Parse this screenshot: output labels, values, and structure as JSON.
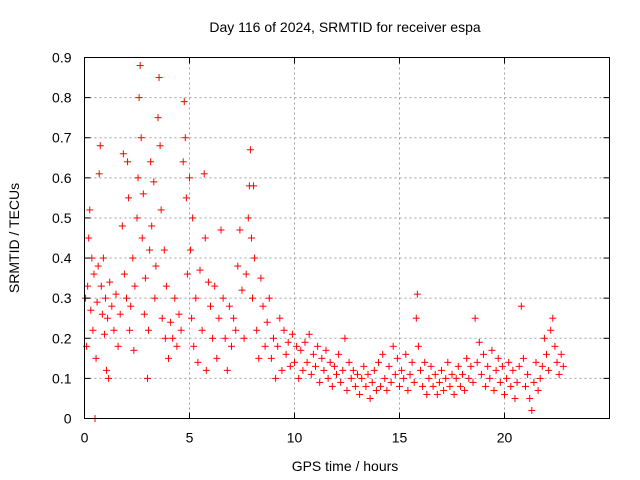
{
  "chart_data": {
    "type": "scatter",
    "title": "Day 116 of 2024, SRMTID for receiver espa",
    "xlabel": "GPS time / hours",
    "ylabel": "SRMTID / TECUs",
    "xlim": [
      0,
      25
    ],
    "ylim": [
      0,
      0.9
    ],
    "grid": true,
    "marker": "+",
    "color": "#ff0000",
    "xticks": [
      0,
      5,
      10,
      15,
      20
    ],
    "xtick_labels": [
      "0",
      "5",
      "10",
      "15",
      "20"
    ],
    "yticks": [
      0,
      0.1,
      0.2,
      0.3,
      0.4,
      0.5,
      0.6,
      0.7,
      0.8,
      0.9
    ],
    "ytick_labels": [
      "0",
      "0.1",
      "0.2",
      "0.3",
      "0.4",
      "0.5",
      "0.6",
      "0.7",
      "0.8",
      "0.9"
    ],
    "series": [
      {
        "name": "SRMTID",
        "points": [
          [
            0.05,
            0.3
          ],
          [
            0.1,
            0.18
          ],
          [
            0.15,
            0.33
          ],
          [
            0.2,
            0.45
          ],
          [
            0.25,
            0.52
          ],
          [
            0.3,
            0.27
          ],
          [
            0.35,
            0.4
          ],
          [
            0.4,
            0.22
          ],
          [
            0.45,
            0.36
          ],
          [
            0.5,
            0.0
          ],
          [
            0.55,
            0.15
          ],
          [
            0.6,
            0.29
          ],
          [
            0.65,
            0.38
          ],
          [
            0.7,
            0.61
          ],
          [
            0.75,
            0.68
          ],
          [
            0.8,
            0.33
          ],
          [
            0.85,
            0.26
          ],
          [
            0.9,
            0.4
          ],
          [
            0.95,
            0.21
          ],
          [
            1.0,
            0.3
          ],
          [
            1.05,
            0.12
          ],
          [
            1.1,
            0.25
          ],
          [
            1.15,
            0.1
          ],
          [
            1.2,
            0.34
          ],
          [
            1.3,
            0.28
          ],
          [
            1.4,
            0.22
          ],
          [
            1.5,
            0.31
          ],
          [
            1.6,
            0.18
          ],
          [
            1.7,
            0.26
          ],
          [
            1.8,
            0.48
          ],
          [
            1.85,
            0.66
          ],
          [
            1.9,
            0.36
          ],
          [
            2.0,
            0.3
          ],
          [
            2.05,
            0.64
          ],
          [
            2.1,
            0.55
          ],
          [
            2.15,
            0.22
          ],
          [
            2.2,
            0.28
          ],
          [
            2.3,
            0.4
          ],
          [
            2.35,
            0.17
          ],
          [
            2.4,
            0.33
          ],
          [
            2.5,
            0.5
          ],
          [
            2.55,
            0.6
          ],
          [
            2.6,
            0.8
          ],
          [
            2.65,
            0.88
          ],
          [
            2.7,
            0.7
          ],
          [
            2.75,
            0.45
          ],
          [
            2.8,
            0.56
          ],
          [
            2.85,
            0.26
          ],
          [
            2.9,
            0.35
          ],
          [
            3.0,
            0.1
          ],
          [
            3.05,
            0.22
          ],
          [
            3.1,
            0.42
          ],
          [
            3.15,
            0.64
          ],
          [
            3.2,
            0.48
          ],
          [
            3.3,
            0.59
          ],
          [
            3.35,
            0.3
          ],
          [
            3.4,
            0.38
          ],
          [
            3.5,
            0.75
          ],
          [
            3.55,
            0.85
          ],
          [
            3.6,
            0.68
          ],
          [
            3.65,
            0.52
          ],
          [
            3.7,
            0.25
          ],
          [
            3.8,
            0.42
          ],
          [
            3.85,
            0.2
          ],
          [
            3.9,
            0.33
          ],
          [
            4.0,
            0.15
          ],
          [
            4.1,
            0.24
          ],
          [
            4.2,
            0.2
          ],
          [
            4.3,
            0.3
          ],
          [
            4.4,
            0.18
          ],
          [
            4.5,
            0.26
          ],
          [
            4.6,
            0.22
          ],
          [
            4.7,
            0.64
          ],
          [
            4.75,
            0.79
          ],
          [
            4.8,
            0.7
          ],
          [
            4.85,
            0.55
          ],
          [
            4.9,
            0.36
          ],
          [
            5.0,
            0.6
          ],
          [
            5.05,
            0.42
          ],
          [
            5.1,
            0.25
          ],
          [
            5.15,
            0.5
          ],
          [
            5.2,
            0.18
          ],
          [
            5.3,
            0.3
          ],
          [
            5.4,
            0.14
          ],
          [
            5.5,
            0.37
          ],
          [
            5.6,
            0.22
          ],
          [
            5.7,
            0.61
          ],
          [
            5.75,
            0.45
          ],
          [
            5.8,
            0.12
          ],
          [
            5.9,
            0.34
          ],
          [
            6.0,
            0.28
          ],
          [
            6.1,
            0.2
          ],
          [
            6.2,
            0.33
          ],
          [
            6.3,
            0.15
          ],
          [
            6.4,
            0.25
          ],
          [
            6.5,
            0.47
          ],
          [
            6.6,
            0.3
          ],
          [
            6.7,
            0.2
          ],
          [
            6.8,
            0.12
          ],
          [
            6.9,
            0.28
          ],
          [
            7.0,
            0.18
          ],
          [
            7.1,
            0.25
          ],
          [
            7.2,
            0.22
          ],
          [
            7.3,
            0.38
          ],
          [
            7.4,
            0.47
          ],
          [
            7.5,
            0.32
          ],
          [
            7.6,
            0.2
          ],
          [
            7.7,
            0.36
          ],
          [
            7.8,
            0.5
          ],
          [
            7.85,
            0.58
          ],
          [
            7.9,
            0.67
          ],
          [
            7.95,
            0.45
          ],
          [
            8.0,
            0.3
          ],
          [
            8.05,
            0.58
          ],
          [
            8.1,
            0.4
          ],
          [
            8.2,
            0.22
          ],
          [
            8.3,
            0.15
          ],
          [
            8.4,
            0.35
          ],
          [
            8.5,
            0.28
          ],
          [
            8.6,
            0.18
          ],
          [
            8.7,
            0.24
          ],
          [
            8.8,
            0.3
          ],
          [
            8.9,
            0.15
          ],
          [
            9.0,
            0.2
          ],
          [
            9.1,
            0.1
          ],
          [
            9.2,
            0.18
          ],
          [
            9.3,
            0.25
          ],
          [
            9.4,
            0.12
          ],
          [
            9.5,
            0.22
          ],
          [
            9.6,
            0.16
          ],
          [
            9.7,
            0.19
          ],
          [
            9.8,
            0.13
          ],
          [
            9.9,
            0.21
          ],
          [
            10.0,
            0.14
          ],
          [
            10.1,
            0.18
          ],
          [
            10.2,
            0.1
          ],
          [
            10.3,
            0.17
          ],
          [
            10.4,
            0.12
          ],
          [
            10.5,
            0.19
          ],
          [
            10.6,
            0.14
          ],
          [
            10.7,
            0.21
          ],
          [
            10.8,
            0.11
          ],
          [
            10.9,
            0.16
          ],
          [
            11.0,
            0.13
          ],
          [
            11.1,
            0.18
          ],
          [
            11.2,
            0.09
          ],
          [
            11.3,
            0.15
          ],
          [
            11.4,
            0.12
          ],
          [
            11.5,
            0.17
          ],
          [
            11.6,
            0.1
          ],
          [
            11.7,
            0.14
          ],
          [
            11.8,
            0.08
          ],
          [
            11.9,
            0.13
          ],
          [
            12.0,
            0.11
          ],
          [
            12.1,
            0.16
          ],
          [
            12.2,
            0.09
          ],
          [
            12.3,
            0.12
          ],
          [
            12.4,
            0.2
          ],
          [
            12.5,
            0.07
          ],
          [
            12.6,
            0.14
          ],
          [
            12.7,
            0.1
          ],
          [
            12.8,
            0.12
          ],
          [
            12.9,
            0.08
          ],
          [
            13.0,
            0.11
          ],
          [
            13.1,
            0.06
          ],
          [
            13.2,
            0.1
          ],
          [
            13.3,
            0.13
          ],
          [
            13.4,
            0.08
          ],
          [
            13.5,
            0.11
          ],
          [
            13.6,
            0.05
          ],
          [
            13.7,
            0.09
          ],
          [
            13.8,
            0.12
          ],
          [
            13.9,
            0.07
          ],
          [
            14.0,
            0.14
          ],
          [
            14.1,
            0.08
          ],
          [
            14.2,
            0.16
          ],
          [
            14.3,
            0.1
          ],
          [
            14.4,
            0.07
          ],
          [
            14.5,
            0.13
          ],
          [
            14.6,
            0.09
          ],
          [
            14.7,
            0.18
          ],
          [
            14.8,
            0.11
          ],
          [
            14.9,
            0.15
          ],
          [
            15.0,
            0.08
          ],
          [
            15.1,
            0.12
          ],
          [
            15.2,
            0.1
          ],
          [
            15.3,
            0.16
          ],
          [
            15.4,
            0.07
          ],
          [
            15.5,
            0.11
          ],
          [
            15.6,
            0.14
          ],
          [
            15.7,
            0.09
          ],
          [
            15.8,
            0.25
          ],
          [
            15.85,
            0.31
          ],
          [
            15.9,
            0.18
          ],
          [
            16.0,
            0.12
          ],
          [
            16.1,
            0.08
          ],
          [
            16.2,
            0.14
          ],
          [
            16.3,
            0.06
          ],
          [
            16.4,
            0.1
          ],
          [
            16.5,
            0.13
          ],
          [
            16.6,
            0.08
          ],
          [
            16.7,
            0.11
          ],
          [
            16.8,
            0.06
          ],
          [
            16.9,
            0.09
          ],
          [
            17.0,
            0.12
          ],
          [
            17.1,
            0.07
          ],
          [
            17.2,
            0.1
          ],
          [
            17.3,
            0.14
          ],
          [
            17.4,
            0.08
          ],
          [
            17.5,
            0.11
          ],
          [
            17.6,
            0.06
          ],
          [
            17.7,
            0.1
          ],
          [
            17.8,
            0.13
          ],
          [
            17.9,
            0.08
          ],
          [
            18.0,
            0.11
          ],
          [
            18.1,
            0.07
          ],
          [
            18.2,
            0.15
          ],
          [
            18.3,
            0.1
          ],
          [
            18.4,
            0.13
          ],
          [
            18.5,
            0.09
          ],
          [
            18.6,
            0.25
          ],
          [
            18.7,
            0.14
          ],
          [
            18.8,
            0.19
          ],
          [
            18.9,
            0.11
          ],
          [
            19.0,
            0.16
          ],
          [
            19.1,
            0.08
          ],
          [
            19.2,
            0.13
          ],
          [
            19.3,
            0.1
          ],
          [
            19.4,
            0.17
          ],
          [
            19.5,
            0.07
          ],
          [
            19.6,
            0.12
          ],
          [
            19.7,
            0.15
          ],
          [
            19.8,
            0.09
          ],
          [
            19.9,
            0.13
          ],
          [
            20.0,
            0.06
          ],
          [
            20.1,
            0.1
          ],
          [
            20.2,
            0.14
          ],
          [
            20.3,
            0.08
          ],
          [
            20.4,
            0.12
          ],
          [
            20.5,
            0.05
          ],
          [
            20.6,
            0.09
          ],
          [
            20.7,
            0.13
          ],
          [
            20.8,
            0.28
          ],
          [
            20.9,
            0.15
          ],
          [
            21.0,
            0.08
          ],
          [
            21.1,
            0.11
          ],
          [
            21.2,
            0.05
          ],
          [
            21.3,
            0.02
          ],
          [
            21.4,
            0.09
          ],
          [
            21.5,
            0.14
          ],
          [
            21.6,
            0.07
          ],
          [
            21.7,
            0.1
          ],
          [
            21.8,
            0.13
          ],
          [
            21.9,
            0.2
          ],
          [
            22.0,
            0.16
          ],
          [
            22.1,
            0.12
          ],
          [
            22.2,
            0.22
          ],
          [
            22.3,
            0.25
          ],
          [
            22.4,
            0.18
          ],
          [
            22.5,
            0.14
          ],
          [
            22.6,
            0.11
          ],
          [
            22.7,
            0.16
          ],
          [
            22.8,
            0.13
          ]
        ]
      }
    ]
  }
}
